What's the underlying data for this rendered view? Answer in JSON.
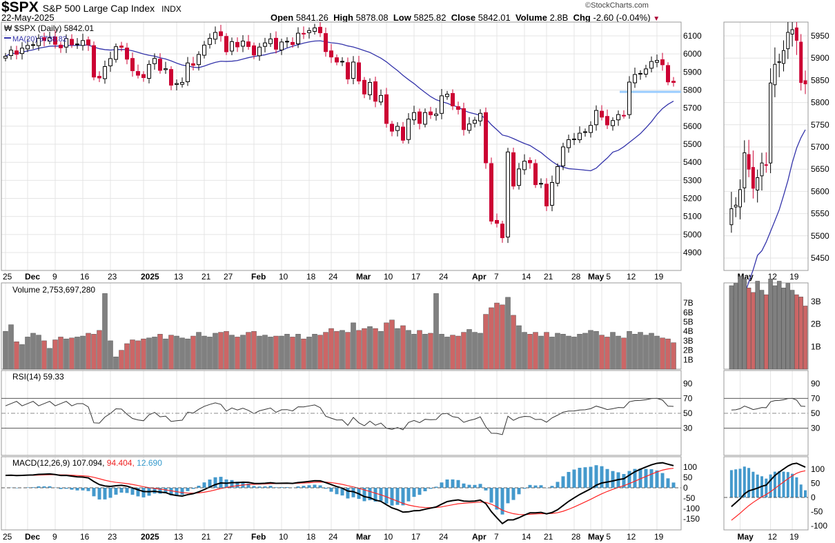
{
  "header": {
    "symbol": "$SPX",
    "name": "S&P 500 Large Cap Index",
    "exchange": "INDX",
    "date": "22-May-2025",
    "open_label": "Open",
    "open": "5841.26",
    "high_label": "High",
    "high": "5878.08",
    "low_label": "Low",
    "low": "5825.82",
    "close_label": "Close",
    "close": "5842.01",
    "volume_label": "Volume",
    "volume": "2.8B",
    "chg_label": "Chg",
    "chg": "-2.60 (-0.04%)",
    "brand": "©StockCharts.com"
  },
  "legends": {
    "price": "$SPX (Daily) 5842.01",
    "ma": "MA(20) 5738.82",
    "volume": "Volume 2,753,697,280",
    "rsi": "RSI(14) 59.33",
    "macd": "MACD(12,26,9)",
    "macd_val": "107.094,",
    "signal_val": "94.404,",
    "hist_val": "12.690"
  },
  "colors": {
    "up": "#000000",
    "down": "#cc0033",
    "ma": "#3333aa",
    "vol_up": "#808080",
    "vol_down": "#cc6666",
    "macd": "#000000",
    "signal": "#ff2222",
    "hist": "#4499cc",
    "support": "#99ccff"
  },
  "chart_data": [
    {
      "type": "candlestick",
      "title": "$SPX (Daily)",
      "ylim": [
        4800,
        6170
      ],
      "yticks": [
        6100,
        6000,
        5900,
        5800,
        5700,
        5600,
        5500,
        5400,
        5300,
        5200,
        5100,
        5000,
        4900
      ],
      "close": [
        5987,
        6021,
        5998,
        6032,
        6047,
        6050,
        6086,
        6075,
        6090,
        6053,
        6034,
        6085,
        6051,
        6051,
        6074,
        6050,
        5872,
        5867,
        5930,
        5974,
        6040,
        6037,
        5971,
        5907,
        5882,
        5869,
        5942,
        5975,
        5909,
        5918,
        5827,
        5836,
        5842,
        5950,
        5937,
        5997,
        6049,
        6086,
        6119,
        6101,
        6012,
        6068,
        6039,
        6071,
        6041,
        5994,
        6038,
        6061,
        6083,
        6026,
        6066,
        6068,
        6052,
        6115,
        6114,
        6129,
        6144,
        6117,
        6013,
        5983,
        5955,
        5956,
        5861,
        5955,
        5850,
        5778,
        5842,
        5738,
        5770,
        5615,
        5572,
        5599,
        5522,
        5639,
        5675,
        5615,
        5675,
        5663,
        5667,
        5768,
        5777,
        5712,
        5693,
        5581,
        5612,
        5633,
        5671,
        5397,
        5074,
        5062,
        4982,
        5457,
        5268,
        5363,
        5406,
        5397,
        5276,
        5283,
        5158,
        5288,
        5376,
        5485,
        5525,
        5529,
        5561,
        5569,
        5604,
        5687,
        5650,
        5607,
        5631,
        5664,
        5660,
        5844,
        5886,
        5892,
        5917,
        5958,
        5964,
        5940,
        5845,
        5842
      ],
      "volume_billions": [
        4.0,
        4.7,
        2.9,
        2.6,
        3.4,
        3.8,
        3.6,
        3.0,
        2.2,
        3.1,
        3.4,
        3.2,
        3.3,
        3.4,
        3.5,
        3.8,
        3.7,
        4.1,
        8.0,
        3.0,
        1.3,
        2.0,
        2.7,
        3.1,
        3.0,
        3.2,
        3.3,
        3.4,
        3.7,
        3.2,
        3.6,
        3.5,
        3.3,
        3.2,
        3.5,
        3.9,
        3.5,
        3.4,
        3.8,
        3.9,
        4.0,
        3.6,
        3.4,
        3.6,
        3.9,
        4.0,
        3.5,
        3.6,
        3.4,
        3.5,
        3.5,
        3.7,
        3.4,
        3.7,
        3.2,
        3.4,
        3.7,
        3.6,
        3.9,
        4.3,
        4.0,
        4.1,
        3.9,
        4.9,
        4.1,
        4.3,
        4.5,
        4.3,
        4.0,
        4.9,
        5.2,
        4.3,
        4.6,
        4.1,
        3.7,
        4.1,
        3.7,
        3.8,
        8.0,
        3.7,
        3.4,
        3.6,
        3.5,
        3.9,
        4.2,
        3.9,
        3.8,
        5.8,
        6.5,
        7.0,
        6.8,
        7.6,
        5.7,
        4.6,
        3.9,
        3.7,
        3.9,
        3.5,
        3.9,
        3.4,
        3.8,
        3.7,
        3.5,
        3.4,
        3.7,
        3.8,
        4.1,
        4.0,
        3.6,
        3.4,
        3.9,
        3.5,
        3.3,
        4.0,
        3.7,
        3.9,
        3.6,
        3.8,
        3.5,
        3.3,
        3.2,
        2.8
      ],
      "support_level": 5790,
      "xlabels": [
        {
          "t": "25",
          "d": 0
        },
        {
          "t": "Dec",
          "d": 4,
          "b": 1
        },
        {
          "t": "9",
          "d": 9
        },
        {
          "t": "16",
          "d": 14
        },
        {
          "t": "23",
          "d": 19
        },
        {
          "t": "2025",
          "d": 25,
          "b": 1
        },
        {
          "t": "13",
          "d": 31
        },
        {
          "t": "21",
          "d": 36
        },
        {
          "t": "27",
          "d": 40
        },
        {
          "t": "Feb",
          "d": 45,
          "b": 1
        },
        {
          "t": "10",
          "d": 50
        },
        {
          "t": "18",
          "d": 55
        },
        {
          "t": "24",
          "d": 59
        },
        {
          "t": "Mar",
          "d": 64,
          "b": 1
        },
        {
          "t": "10",
          "d": 69
        },
        {
          "t": "17",
          "d": 74
        },
        {
          "t": "24",
          "d": 79
        },
        {
          "t": "Apr",
          "d": 85,
          "b": 1
        },
        {
          "t": "7",
          "d": 89
        },
        {
          "t": "14",
          "d": 94
        },
        {
          "t": "21",
          "d": 98
        },
        {
          "t": "28",
          "d": 103
        },
        {
          "t": "May",
          "d": 106,
          "b": 1
        },
        {
          "t": "5",
          "d": 108
        },
        {
          "t": "12",
          "d": 113
        },
        {
          "t": "19",
          "d": 118
        }
      ],
      "vol_ticks": [
        "7B",
        "6B",
        "5B",
        "4B",
        "3B",
        "2B",
        "1B"
      ],
      "rsi_ticks": [
        90,
        70,
        50,
        30
      ],
      "macd_ticks": [
        100,
        50,
        0,
        -50,
        -100,
        -150
      ]
    },
    {
      "type": "candlestick",
      "ylim": [
        5420,
        5975
      ],
      "yticks": [
        5950,
        5900,
        5850,
        5800,
        5750,
        5700,
        5650,
        5600,
        5550,
        5500,
        5450
      ],
      "xlabels": [
        {
          "t": "May",
          "d": 106,
          "b": 1
        },
        {
          "t": "12",
          "d": 113
        },
        {
          "t": "19",
          "d": 118
        }
      ],
      "vol_ticks": [
        "3B",
        "2B",
        "1B"
      ],
      "rsi_ticks": [
        90,
        70,
        50,
        30
      ],
      "macd_ticks": [
        100,
        50,
        0,
        -50,
        -100
      ]
    }
  ]
}
